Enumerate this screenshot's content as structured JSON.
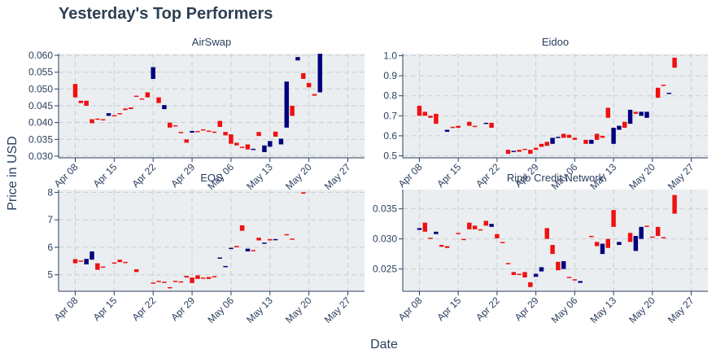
{
  "colors": {
    "increasing": "#00007f",
    "decreasing": "#ee1111",
    "plot_bg": "#ebeef0"
  },
  "chart_data": {
    "type": "candlestick",
    "title": "Yesterday's Top Performers",
    "xlabel": "Date",
    "ylabel": "Price in USD",
    "grid": true,
    "date_ticks": [
      "2018-04-08",
      "2018-04-15",
      "2018-04-22",
      "2018-04-29",
      "2018-05-06",
      "2018-05-13",
      "2018-05-20",
      "2018-05-27"
    ],
    "date_tick_labels": [
      "Apr 08",
      "Apr 15",
      "Apr 22",
      "Apr 29",
      "May 06",
      "May 13",
      "May 20",
      "May 27"
    ],
    "x_range": [
      "2018-04-05",
      "2018-05-30"
    ],
    "panels": [
      {
        "name": "AirSwap",
        "ylim": [
          0.0295,
          0.0605
        ],
        "yticks": [
          0.03,
          0.035,
          0.04,
          0.045,
          0.05,
          0.055,
          0.06
        ],
        "ytick_labels": [
          "0.030",
          "0.035",
          "0.040",
          "0.045",
          "0.050",
          "0.055",
          "0.060"
        ],
        "start_date": "2018-04-08",
        "candles": [
          [
            0.0515,
            0.0475
          ],
          [
            0.0465,
            0.0458
          ],
          [
            0.0465,
            0.045
          ],
          [
            0.041,
            0.0398
          ],
          [
            0.0412,
            0.041
          ],
          [
            0.041,
            0.0408
          ],
          [
            0.042,
            0.0428
          ],
          [
            0.0422,
            0.042
          ],
          [
            0.0428,
            0.0426
          ],
          [
            0.0442,
            0.0437
          ],
          [
            0.0445,
            0.044
          ],
          [
            0.048,
            0.0479
          ],
          [
            0.0472,
            0.047
          ],
          [
            0.049,
            0.0475
          ],
          [
            0.053,
            0.0565
          ],
          [
            0.0475,
            0.0458
          ],
          [
            0.044,
            0.0452
          ],
          [
            0.04,
            0.0385
          ],
          [
            0.0392,
            0.039
          ],
          [
            0.0372,
            0.037
          ],
          [
            0.035,
            0.034
          ],
          [
            0.037,
            0.0375
          ],
          [
            0.0375,
            0.0373
          ],
          [
            0.038,
            0.0377
          ],
          [
            0.0376,
            0.0375
          ],
          [
            0.0373,
            0.0372
          ],
          [
            0.0405,
            0.0387
          ],
          [
            0.0372,
            0.0362
          ],
          [
            0.0365,
            0.0337
          ],
          [
            0.034,
            0.0332
          ],
          [
            0.0328,
            0.0327
          ],
          [
            0.0335,
            0.032
          ],
          [
            0.032,
            0.0322
          ],
          [
            0.0372,
            0.036
          ],
          [
            0.0312,
            0.0332
          ],
          [
            0.0328,
            0.0345
          ],
          [
            0.0373,
            0.0358
          ],
          [
            0.0335,
            0.0352
          ],
          [
            0.0385,
            0.0522
          ],
          [
            0.045,
            0.042
          ],
          [
            0.0585,
            0.0595
          ],
          [
            0.0547,
            0.053
          ],
          [
            0.0518,
            0.0505
          ],
          [
            0.0485,
            0.048
          ],
          [
            0.049,
            0.0605
          ]
        ]
      },
      {
        "name": "Eidoo",
        "ylim": [
          0.49,
          1.01
        ],
        "yticks": [
          0.5,
          0.6,
          0.7,
          0.8,
          0.9,
          1.0
        ],
        "ytick_labels": [
          "0.5",
          "0.6",
          "0.7",
          "0.8",
          "0.9",
          "1.0"
        ],
        "start_date": "2018-04-08",
        "candles": [
          [
            0.75,
            0.7
          ],
          [
            0.72,
            0.7
          ],
          [
            0.7,
            0.69
          ],
          [
            0.71,
            0.66
          ],
          null,
          [
            0.62,
            0.63
          ],
          [
            0.645,
            0.64
          ],
          [
            0.65,
            0.64
          ],
          null,
          [
            0.67,
            0.65
          ],
          [
            0.65,
            0.645
          ],
          null,
          [
            0.66,
            0.665
          ],
          [
            0.665,
            0.64
          ],
          null,
          null,
          [
            0.53,
            0.51
          ],
          [
            0.52,
            0.525
          ],
          [
            0.53,
            0.52
          ],
          [
            0.535,
            0.53
          ],
          [
            0.53,
            0.51
          ],
          [
            0.54,
            0.53
          ],
          [
            0.56,
            0.545
          ],
          [
            0.57,
            0.55
          ],
          [
            0.56,
            0.59
          ],
          [
            0.59,
            0.595
          ],
          [
            0.61,
            0.59
          ],
          [
            0.605,
            0.59
          ],
          [
            0.59,
            0.58
          ],
          null,
          [
            0.58,
            0.56
          ],
          [
            0.56,
            0.58
          ],
          [
            0.61,
            0.58
          ],
          [
            0.6,
            0.59
          ],
          [
            0.74,
            0.69
          ],
          [
            0.56,
            0.64
          ],
          [
            0.63,
            0.65
          ],
          [
            0.67,
            0.64
          ],
          [
            0.66,
            0.73
          ],
          [
            0.72,
            0.71
          ],
          [
            0.7,
            0.72
          ],
          [
            0.69,
            0.72
          ],
          null,
          [
            0.84,
            0.79
          ],
          [
            0.855,
            0.85
          ],
          [
            0.81,
            0.815
          ],
          [
            0.99,
            0.94
          ]
        ]
      },
      {
        "name": "EOS",
        "ylim": [
          4.4,
          8.1
        ],
        "yticks": [
          5,
          6,
          7,
          8
        ],
        "ytick_labels": [
          "5",
          "6",
          "7",
          "8"
        ],
        "start_date": "2018-04-08",
        "candles": [
          [
            5.57,
            5.42
          ],
          [
            5.52,
            5.48
          ],
          [
            5.38,
            5.58
          ],
          [
            5.55,
            5.85
          ],
          [
            5.42,
            5.18
          ],
          [
            5.3,
            5.28
          ],
          null,
          [
            5.45,
            5.44
          ],
          [
            5.55,
            5.46
          ],
          [
            5.47,
            5.46
          ],
          null,
          [
            5.2,
            5.1
          ],
          null,
          null,
          [
            4.72,
            4.71
          ],
          [
            4.78,
            4.77
          ],
          [
            4.75,
            4.74
          ],
          [
            4.55,
            4.54
          ],
          [
            4.78,
            4.76
          ],
          [
            4.76,
            4.75
          ],
          [
            4.96,
            4.9
          ],
          [
            4.9,
            4.7
          ],
          [
            4.98,
            4.85
          ],
          [
            4.9,
            4.86
          ],
          [
            4.92,
            4.85
          ],
          [
            4.95,
            4.94
          ],
          [
            5.62,
            5.63
          ],
          [
            5.3,
            5.32
          ],
          [
            5.95,
            5.98
          ],
          [
            6.05,
            6.0
          ],
          [
            6.8,
            6.6
          ],
          [
            5.85,
            5.95
          ],
          [
            5.9,
            5.88
          ],
          [
            6.35,
            6.25
          ],
          [
            6.15,
            6.17
          ],
          [
            6.3,
            6.25
          ],
          [
            6.28,
            6.3
          ],
          null,
          [
            6.48,
            6.46
          ],
          [
            6.32,
            6.3
          ],
          null,
          [
            8.0,
            7.95
          ]
        ]
      },
      {
        "name": "Ripio Credit Network",
        "ylim": [
          0.0213,
          0.0382
        ],
        "yticks": [
          0.025,
          0.03,
          0.035
        ],
        "ytick_labels": [
          "0.025",
          "0.030",
          "0.035"
        ],
        "start_date": "2018-04-08",
        "candles": [
          [
            0.0315,
            0.0318
          ],
          [
            0.0327,
            0.0312
          ],
          [
            0.0302,
            0.03
          ],
          [
            0.0308,
            0.0312
          ],
          [
            0.029,
            0.0287
          ],
          [
            0.0288,
            0.0285
          ],
          null,
          [
            0.031,
            0.0308
          ],
          [
            0.03,
            0.0298
          ],
          [
            0.0327,
            0.0316
          ],
          [
            0.0322,
            0.0316
          ],
          [
            0.0316,
            0.0315
          ],
          [
            0.033,
            0.0322
          ],
          [
            0.032,
            0.0325
          ],
          [
            0.0308,
            0.0301
          ],
          [
            0.0295,
            0.0294
          ],
          [
            0.026,
            0.0258
          ],
          [
            0.0245,
            0.024
          ],
          [
            0.0242,
            0.024
          ],
          [
            0.0245,
            0.0236
          ],
          [
            0.0228,
            0.022
          ],
          [
            0.0237,
            0.0242
          ],
          [
            0.0246,
            0.0253
          ],
          [
            0.0318,
            0.03
          ],
          [
            0.029,
            0.0275
          ],
          [
            0.0262,
            0.0248
          ],
          [
            0.025,
            0.0263
          ],
          [
            0.0237,
            0.0235
          ],
          [
            0.0233,
            0.0232
          ],
          [
            0.0227,
            0.023
          ],
          null,
          [
            0.0305,
            0.0303
          ],
          [
            0.0295,
            0.0288
          ],
          [
            0.0275,
            0.0292
          ],
          [
            0.03,
            0.0285
          ],
          [
            0.0348,
            0.032
          ],
          [
            0.029,
            0.0295
          ],
          null,
          [
            0.031,
            0.0295
          ],
          [
            0.028,
            0.0305
          ],
          [
            0.03,
            0.032
          ],
          [
            0.0322,
            0.032
          ],
          [
            0.0304,
            0.0302
          ],
          [
            0.032,
            0.0305
          ],
          [
            0.0303,
            0.0302
          ],
          null,
          [
            0.0373,
            0.0342
          ]
        ]
      }
    ]
  }
}
